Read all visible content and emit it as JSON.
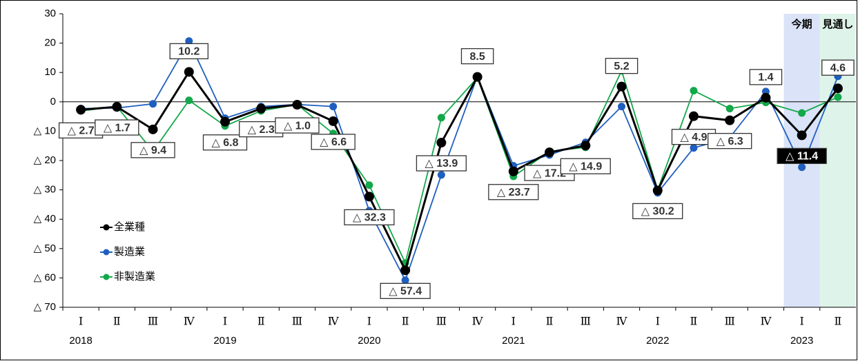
{
  "chart_data": {
    "type": "line",
    "categories": [
      "Ⅰ",
      "Ⅱ",
      "Ⅲ",
      "Ⅳ",
      "Ⅰ",
      "Ⅱ",
      "Ⅲ",
      "Ⅳ",
      "Ⅰ",
      "Ⅱ",
      "Ⅲ",
      "Ⅳ",
      "Ⅰ",
      "Ⅱ",
      "Ⅲ",
      "Ⅳ",
      "Ⅰ",
      "Ⅱ",
      "Ⅲ",
      "Ⅳ",
      "Ⅰ",
      "Ⅱ"
    ],
    "category_years": [
      "2018",
      null,
      null,
      null,
      "2019",
      null,
      null,
      null,
      "2020",
      null,
      null,
      null,
      "2021",
      null,
      null,
      null,
      "2022",
      null,
      null,
      null,
      "2023",
      null
    ],
    "series": [
      {
        "name": "全業種",
        "color": "#000000",
        "values": [
          -2.7,
          -1.7,
          -9.4,
          10.2,
          -6.8,
          -2.3,
          -1.0,
          -6.6,
          -32.3,
          -57.4,
          -13.9,
          8.5,
          -23.7,
          -17.2,
          -14.9,
          5.2,
          -30.2,
          -4.9,
          -6.3,
          1.4,
          -11.4,
          4.6
        ],
        "value_labels": [
          "△ 2.7",
          "△ 1.7",
          "△ 9.4",
          "10.2",
          "△ 6.8",
          "△ 2.3",
          "△ 1.0",
          "△ 6.6",
          "△ 32.3",
          "△ 57.4",
          "△ 13.9",
          "8.5",
          "△ 23.7",
          "△ 17.2",
          "△ 14.9",
          "5.2",
          "△ 30.2",
          "△ 4.9",
          "△ 6.3",
          "1.4",
          "△ 11.4",
          "4.6"
        ]
      },
      {
        "name": "製造業",
        "color": "#1f5fbf",
        "values": [
          -2.3,
          -2.1,
          -0.7,
          20.7,
          -5.6,
          -1.6,
          -0.9,
          -1.6,
          -37.1,
          -60.8,
          -24.9,
          8.7,
          -21.8,
          -18.1,
          -13.8,
          -1.6,
          -31.0,
          -15.7,
          -12.2,
          3.5,
          -22.3,
          8.7
        ]
      },
      {
        "name": "非製造業",
        "color": "#13a84a",
        "values": [
          -3.1,
          -1.6,
          -16.9,
          0.5,
          -8.2,
          -3.1,
          -0.9,
          -10.8,
          -28.4,
          -54.9,
          -5.4,
          8.2,
          -25.4,
          -16.9,
          -15.5,
          10.6,
          -30.0,
          3.8,
          -2.3,
          -0.2,
          -3.8,
          1.6
        ]
      }
    ],
    "highlights": [
      {
        "label": "今期",
        "color": "#dae3f7"
      },
      {
        "label": "見通し",
        "color": "#def3e9"
      }
    ],
    "ylim": [
      -70,
      30
    ],
    "yticks": [
      {
        "value": -70,
        "label": "△ 70"
      },
      {
        "value": -60,
        "label": "△ 60"
      },
      {
        "value": -50,
        "label": "△ 50"
      },
      {
        "value": -40,
        "label": "△ 40"
      },
      {
        "value": -30,
        "label": "△ 30"
      },
      {
        "value": -20,
        "label": "△ 20"
      },
      {
        "value": -10,
        "label": "△ 10"
      },
      0,
      10,
      20,
      30
    ],
    "legend": "left"
  }
}
